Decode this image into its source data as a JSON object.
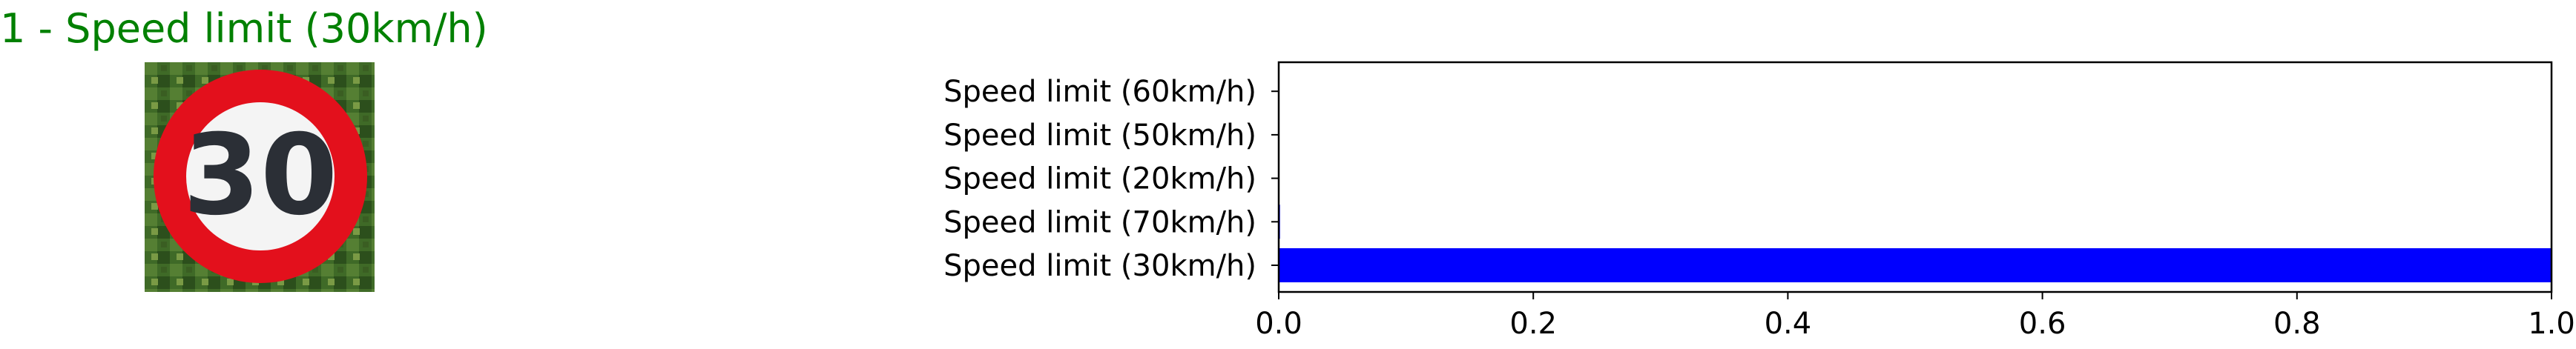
{
  "prediction": {
    "title": "1 - Speed limit (30km/h)",
    "title_color": "#008000",
    "image": {
      "icon": "speed-limit-30-sign",
      "sign_text": "30",
      "ring_color": "#e3101c",
      "face_color": "#f4f4f4",
      "numeral_color": "#2b2f36",
      "background_color": "#3f6a27"
    }
  },
  "chart_data": {
    "type": "bar",
    "orientation": "horizontal",
    "categories": [
      "Speed limit (30km/h)",
      "Speed limit (70km/h)",
      "Speed limit (20km/h)",
      "Speed limit (50km/h)",
      "Speed limit (60km/h)"
    ],
    "values": [
      0.9998,
      0.001,
      0.0002,
      0.0001,
      0.0001
    ],
    "bar_color": "#0000ff",
    "xlim": [
      0,
      1.0
    ],
    "xticks": [
      "0.0",
      "0.2",
      "0.4",
      "0.6",
      "0.8",
      "1.0"
    ],
    "title": "",
    "xlabel": "",
    "ylabel": "",
    "grid": false,
    "legend": "none"
  }
}
